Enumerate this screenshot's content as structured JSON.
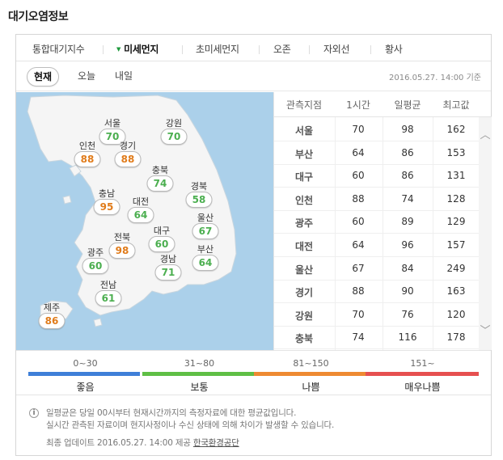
{
  "page_title": "대기오염정보",
  "tabs": [
    {
      "label": "통합대기지수"
    },
    {
      "label": "미세먼지"
    },
    {
      "label": "초미세먼지"
    },
    {
      "label": "오존"
    },
    {
      "label": "자외선"
    },
    {
      "label": "황사"
    }
  ],
  "subtabs": [
    {
      "label": "현재"
    },
    {
      "label": "오늘"
    },
    {
      "label": "내일"
    }
  ],
  "timestamp": "2016.05.27. 14:00 기준",
  "map_cities": [
    {
      "name": "서울",
      "value": "70",
      "grade": "good"
    },
    {
      "name": "강원",
      "value": "70",
      "grade": "good"
    },
    {
      "name": "인천",
      "value": "88",
      "grade": "bad"
    },
    {
      "name": "경기",
      "value": "88",
      "grade": "bad"
    },
    {
      "name": "충북",
      "value": "74",
      "grade": "good"
    },
    {
      "name": "경북",
      "value": "58",
      "grade": "good"
    },
    {
      "name": "충남",
      "value": "95",
      "grade": "bad"
    },
    {
      "name": "대전",
      "value": "64",
      "grade": "good"
    },
    {
      "name": "울산",
      "value": "67",
      "grade": "good"
    },
    {
      "name": "전북",
      "value": "98",
      "grade": "bad"
    },
    {
      "name": "대구",
      "value": "60",
      "grade": "good"
    },
    {
      "name": "부산",
      "value": "64",
      "grade": "good"
    },
    {
      "name": "광주",
      "value": "60",
      "grade": "good"
    },
    {
      "name": "경남",
      "value": "71",
      "grade": "good"
    },
    {
      "name": "전남",
      "value": "61",
      "grade": "good"
    },
    {
      "name": "제주",
      "value": "86",
      "grade": "bad"
    }
  ],
  "table": {
    "headers": [
      "관측지점",
      "1시간",
      "일평균",
      "최고값"
    ],
    "rows": [
      {
        "region": "서울",
        "hour": "70",
        "avg": "98",
        "max": "162"
      },
      {
        "region": "부산",
        "hour": "64",
        "avg": "86",
        "max": "153"
      },
      {
        "region": "대구",
        "hour": "60",
        "avg": "86",
        "max": "131"
      },
      {
        "region": "인천",
        "hour": "88",
        "avg": "74",
        "max": "128"
      },
      {
        "region": "광주",
        "hour": "60",
        "avg": "89",
        "max": "129"
      },
      {
        "region": "대전",
        "hour": "64",
        "avg": "96",
        "max": "157"
      },
      {
        "region": "울산",
        "hour": "67",
        "avg": "84",
        "max": "249"
      },
      {
        "region": "경기",
        "hour": "88",
        "avg": "90",
        "max": "163"
      },
      {
        "region": "강원",
        "hour": "70",
        "avg": "76",
        "max": "120"
      },
      {
        "region": "충북",
        "hour": "74",
        "avg": "116",
        "max": "178"
      }
    ]
  },
  "legend": [
    {
      "range": "0~30",
      "grade": "좋음",
      "color": "#3f7fd8"
    },
    {
      "range": "31~80",
      "grade": "보통",
      "color": "#5fbf45"
    },
    {
      "range": "81~150",
      "grade": "나쁨",
      "color": "#ee8a32"
    },
    {
      "range": "151~",
      "grade": "매우나쁨",
      "color": "#e65050"
    }
  ],
  "colors": {
    "good": "#4caf50",
    "bad": "#e07b1a",
    "sea": "#abd0ea",
    "land": "#f5f5f5"
  },
  "info": {
    "line1": "일평균은 당일 00시부터 현재시간까지의 측정자료에 대한 평균값입니다.",
    "line2": "실시간 관측된 자료이며 현지사정이나 수신 상태에 의해 차이가 발생할 수 있습니다.",
    "update_prefix": "최종 업데이트 2016.05.27. 14:00 제공",
    "source": "한국환경공단"
  },
  "icons": {
    "tab_active": "triangle-down-icon",
    "scroll_up": "chevron-up-icon",
    "scroll_down": "chevron-down-icon",
    "info": "info-icon"
  }
}
